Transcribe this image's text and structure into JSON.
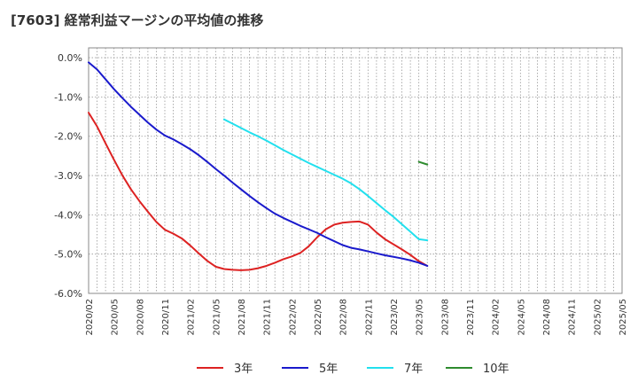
{
  "chart_data": {
    "type": "line",
    "title": "[7603]  経常利益マージンの平均値の推移",
    "xlabel": "",
    "ylabel": "",
    "ylim": [
      -6.0,
      0.25
    ],
    "yticks": [
      0.0,
      -1.0,
      -2.0,
      -3.0,
      -4.0,
      -5.0,
      -6.0
    ],
    "ytick_labels": [
      "0.0%",
      "-1.0%",
      "-2.0%",
      "-3.0%",
      "-4.0%",
      "-5.0%",
      "-6.0%"
    ],
    "x_tick_labels": [
      "2020/02",
      "2020/05",
      "2020/08",
      "2020/11",
      "2021/02",
      "2021/05",
      "2021/08",
      "2021/11",
      "2022/02",
      "2022/05",
      "2022/08",
      "2022/11",
      "2023/02",
      "2023/05",
      "2023/08",
      "2023/11",
      "2024/02",
      "2024/05",
      "2024/08",
      "2024/11",
      "2025/02",
      "2025/05"
    ],
    "grid": true,
    "legend_position": "bottom",
    "series": [
      {
        "name": "3年",
        "color": "#dd2222",
        "points": [
          [
            0,
            -1.4
          ],
          [
            1,
            -1.75
          ],
          [
            2,
            -2.18
          ],
          [
            3,
            -2.6
          ],
          [
            4,
            -3.0
          ],
          [
            5,
            -3.35
          ],
          [
            6,
            -3.65
          ],
          [
            7,
            -3.92
          ],
          [
            8,
            -4.18
          ],
          [
            9,
            -4.38
          ],
          [
            10,
            -4.48
          ],
          [
            11,
            -4.6
          ],
          [
            12,
            -4.78
          ],
          [
            13,
            -4.98
          ],
          [
            14,
            -5.17
          ],
          [
            15,
            -5.32
          ],
          [
            16,
            -5.38
          ],
          [
            17,
            -5.4
          ],
          [
            18,
            -5.41
          ],
          [
            19,
            -5.4
          ],
          [
            20,
            -5.36
          ],
          [
            21,
            -5.3
          ],
          [
            22,
            -5.22
          ],
          [
            23,
            -5.13
          ],
          [
            24,
            -5.06
          ],
          [
            25,
            -4.97
          ],
          [
            26,
            -4.8
          ],
          [
            27,
            -4.57
          ],
          [
            28,
            -4.37
          ],
          [
            29,
            -4.25
          ],
          [
            30,
            -4.2
          ],
          [
            31,
            -4.18
          ],
          [
            32,
            -4.17
          ],
          [
            33,
            -4.25
          ],
          [
            34,
            -4.45
          ],
          [
            35,
            -4.62
          ],
          [
            36,
            -4.75
          ],
          [
            37,
            -4.88
          ],
          [
            38,
            -5.02
          ],
          [
            39,
            -5.18
          ],
          [
            40,
            -5.3
          ]
        ]
      },
      {
        "name": "5年",
        "color": "#1a1acc",
        "points": [
          [
            0,
            -0.12
          ],
          [
            1,
            -0.3
          ],
          [
            2,
            -0.55
          ],
          [
            3,
            -0.8
          ],
          [
            4,
            -1.03
          ],
          [
            5,
            -1.25
          ],
          [
            6,
            -1.45
          ],
          [
            7,
            -1.65
          ],
          [
            8,
            -1.83
          ],
          [
            9,
            -1.98
          ],
          [
            10,
            -2.08
          ],
          [
            11,
            -2.2
          ],
          [
            12,
            -2.33
          ],
          [
            13,
            -2.48
          ],
          [
            14,
            -2.65
          ],
          [
            15,
            -2.83
          ],
          [
            16,
            -3.0
          ],
          [
            17,
            -3.18
          ],
          [
            18,
            -3.35
          ],
          [
            19,
            -3.52
          ],
          [
            20,
            -3.68
          ],
          [
            21,
            -3.83
          ],
          [
            22,
            -3.97
          ],
          [
            23,
            -4.08
          ],
          [
            24,
            -4.18
          ],
          [
            25,
            -4.28
          ],
          [
            26,
            -4.37
          ],
          [
            27,
            -4.46
          ],
          [
            28,
            -4.57
          ],
          [
            29,
            -4.67
          ],
          [
            30,
            -4.77
          ],
          [
            31,
            -4.84
          ],
          [
            32,
            -4.88
          ],
          [
            33,
            -4.93
          ],
          [
            34,
            -4.98
          ],
          [
            35,
            -5.03
          ],
          [
            36,
            -5.07
          ],
          [
            37,
            -5.11
          ],
          [
            38,
            -5.16
          ],
          [
            39,
            -5.22
          ],
          [
            40,
            -5.3
          ]
        ]
      },
      {
        "name": "7年",
        "color": "#22e0ee",
        "points": [
          [
            16,
            -1.57
          ],
          [
            17,
            -1.68
          ],
          [
            18,
            -1.79
          ],
          [
            19,
            -1.9
          ],
          [
            20,
            -2.0
          ],
          [
            21,
            -2.11
          ],
          [
            22,
            -2.23
          ],
          [
            23,
            -2.35
          ],
          [
            24,
            -2.46
          ],
          [
            25,
            -2.57
          ],
          [
            26,
            -2.68
          ],
          [
            27,
            -2.78
          ],
          [
            28,
            -2.88
          ],
          [
            29,
            -2.98
          ],
          [
            30,
            -3.08
          ],
          [
            31,
            -3.2
          ],
          [
            32,
            -3.35
          ],
          [
            33,
            -3.52
          ],
          [
            34,
            -3.7
          ],
          [
            35,
            -3.88
          ],
          [
            36,
            -4.05
          ],
          [
            37,
            -4.24
          ],
          [
            38,
            -4.43
          ],
          [
            39,
            -4.62
          ],
          [
            40,
            -4.65
          ]
        ]
      },
      {
        "name": "10年",
        "color": "#2e8b2e",
        "points": [
          [
            39,
            -2.65
          ],
          [
            40,
            -2.72
          ]
        ]
      }
    ]
  }
}
